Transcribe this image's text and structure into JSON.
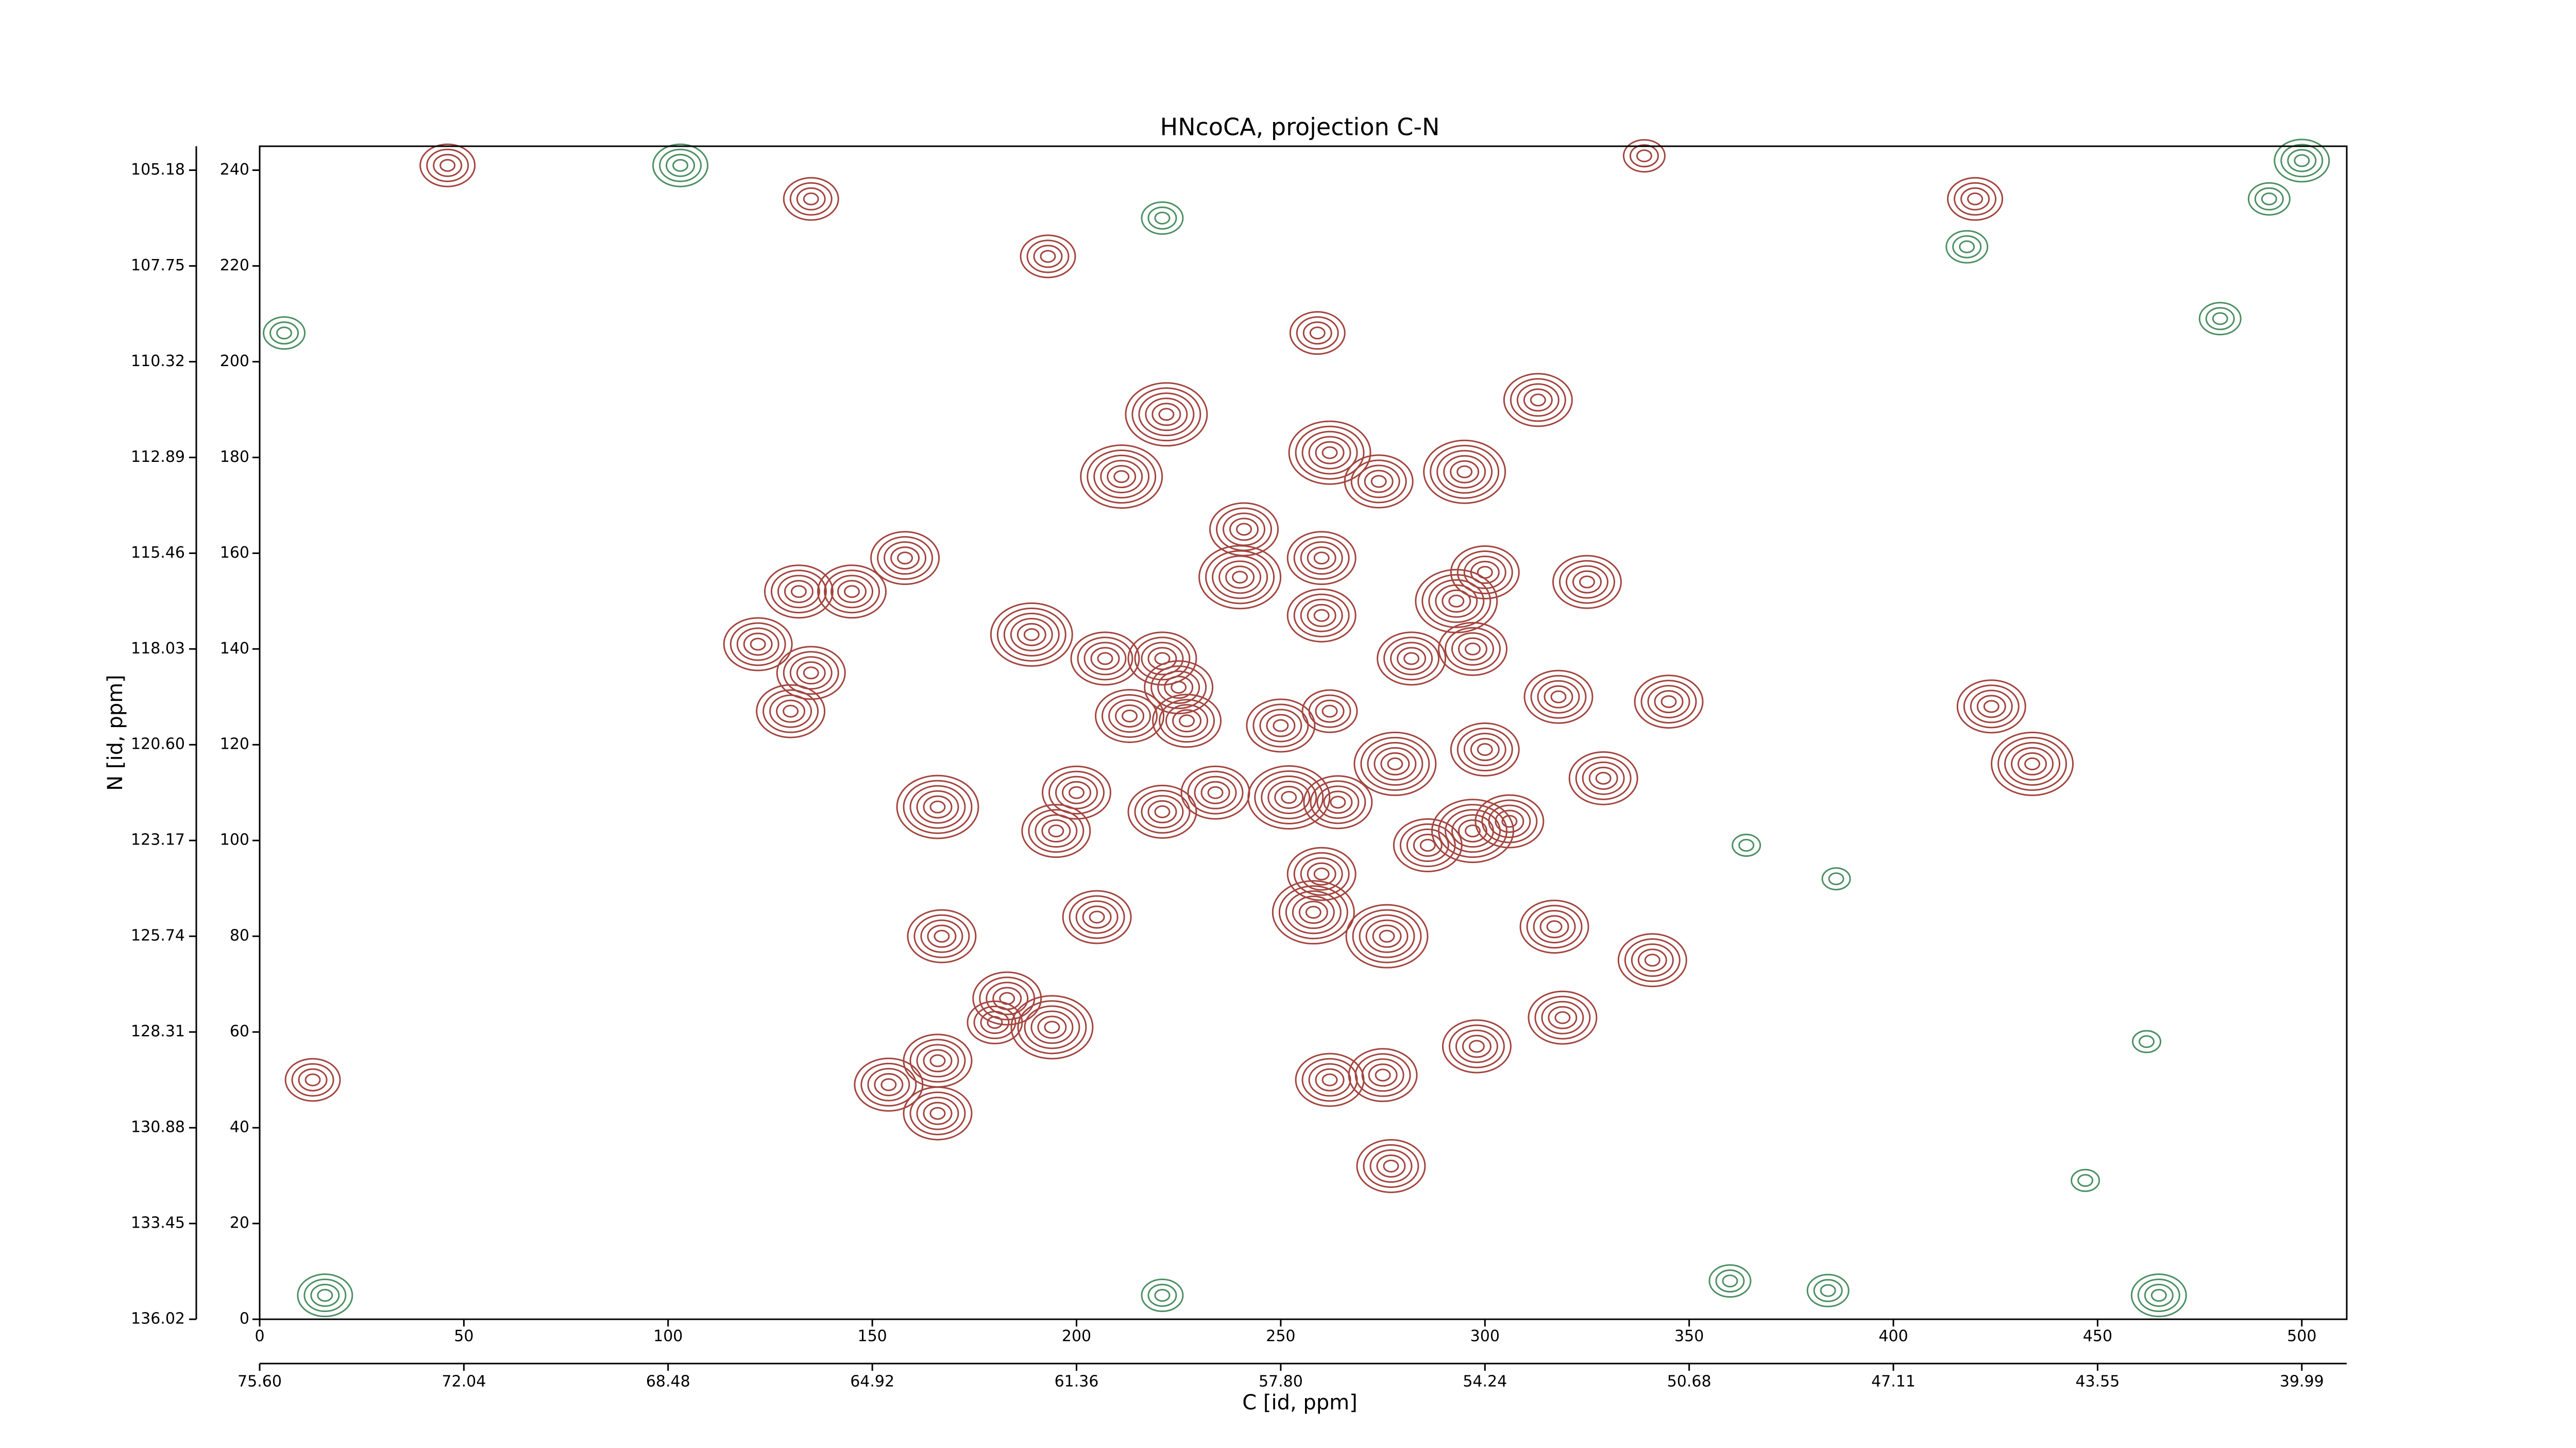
{
  "chart_data": {
    "type": "contour",
    "title": "HNcoCA, projection C-N",
    "xlabel": "C [id, ppm]",
    "ylabel": "N [id, ppm]",
    "xlim": [
      0,
      511
    ],
    "ylim": [
      0,
      245
    ],
    "xticks": [
      0,
      50,
      100,
      150,
      200,
      250,
      300,
      350,
      400,
      450,
      500
    ],
    "yticks": [
      0,
      20,
      40,
      60,
      80,
      100,
      120,
      140,
      160,
      180,
      200,
      220,
      240
    ],
    "x2ticks": [
      {
        "value": 0,
        "label": "75.60"
      },
      {
        "value": 50,
        "label": "72.04"
      },
      {
        "value": 100,
        "label": "68.48"
      },
      {
        "value": 150,
        "label": "64.92"
      },
      {
        "value": 200,
        "label": "61.36"
      },
      {
        "value": 250,
        "label": "57.80"
      },
      {
        "value": 300,
        "label": "54.24"
      },
      {
        "value": 350,
        "label": "50.68"
      },
      {
        "value": 400,
        "label": "47.11"
      },
      {
        "value": 450,
        "label": "43.55"
      },
      {
        "value": 500,
        "label": "39.99"
      }
    ],
    "y2ticks": [
      {
        "value": 0,
        "label": "136.02"
      },
      {
        "value": 20,
        "label": "133.45"
      },
      {
        "value": 40,
        "label": "130.88"
      },
      {
        "value": 60,
        "label": "128.31"
      },
      {
        "value": 80,
        "label": "125.74"
      },
      {
        "value": 100,
        "label": "123.17"
      },
      {
        "value": 120,
        "label": "120.60"
      },
      {
        "value": 140,
        "label": "118.03"
      },
      {
        "value": 160,
        "label": "115.46"
      },
      {
        "value": 180,
        "label": "112.89"
      },
      {
        "value": 200,
        "label": "110.32"
      },
      {
        "value": 220,
        "label": "107.75"
      },
      {
        "value": 240,
        "label": "105.18"
      }
    ],
    "color": "#a3453f",
    "negative_color": "#4c9062",
    "peaks": {
      "x": [
        222,
        211,
        295,
        262,
        274,
        313,
        259,
        241,
        240,
        260,
        132,
        145,
        158,
        122,
        135,
        130,
        189,
        260,
        293,
        300,
        325,
        282,
        297,
        207,
        221,
        225,
        213,
        227,
        250,
        262,
        318,
        345,
        424,
        434,
        278,
        300,
        329,
        200,
        195,
        166,
        221,
        234,
        252,
        264,
        297,
        306,
        286,
        260,
        258,
        205,
        167,
        276,
        317,
        341,
        183,
        194,
        180,
        166,
        154,
        166,
        262,
        275,
        319,
        298,
        277,
        13,
        46,
        135,
        339,
        420,
        193
      ],
      "y": [
        189,
        176,
        177,
        181,
        175,
        192,
        206,
        165,
        155,
        159,
        152,
        152,
        159,
        141,
        135,
        127,
        143,
        147,
        150,
        156,
        154,
        138,
        140,
        138,
        138,
        132,
        126,
        125,
        124,
        127,
        130,
        129,
        128,
        116,
        116,
        119,
        113,
        110,
        102,
        107,
        106,
        110,
        109,
        108,
        102,
        104,
        99,
        93,
        85,
        84,
        80,
        80,
        82,
        75,
        67,
        61,
        62,
        54,
        49,
        43,
        50,
        51,
        63,
        57,
        32,
        50,
        241,
        234,
        243,
        234,
        222
      ],
      "levels": [
        6,
        6,
        6,
        6,
        5,
        5,
        4,
        5,
        6,
        5,
        5,
        5,
        5,
        5,
        5,
        5,
        6,
        5,
        6,
        5,
        5,
        5,
        5,
        5,
        5,
        5,
        5,
        5,
        5,
        4,
        5,
        5,
        5,
        6,
        6,
        5,
        5,
        5,
        5,
        6,
        5,
        5,
        6,
        5,
        6,
        5,
        5,
        5,
        6,
        5,
        5,
        6,
        5,
        5,
        5,
        6,
        4,
        5,
        5,
        5,
        5,
        5,
        5,
        5,
        5,
        4,
        4,
        4,
        3,
        4,
        4
      ]
    },
    "negative_peaks": {
      "x": [
        6,
        418,
        221,
        480,
        364,
        386,
        462,
        447,
        103,
        500,
        360,
        384,
        465,
        221,
        16,
        492
      ],
      "y": [
        206,
        224,
        230,
        209,
        99,
        92,
        58,
        29,
        241,
        242,
        8,
        6,
        5,
        5,
        5,
        234
      ],
      "levels": [
        3,
        3,
        3,
        3,
        2,
        2,
        2,
        2,
        4,
        4,
        3,
        3,
        4,
        3,
        4,
        3
      ]
    }
  }
}
